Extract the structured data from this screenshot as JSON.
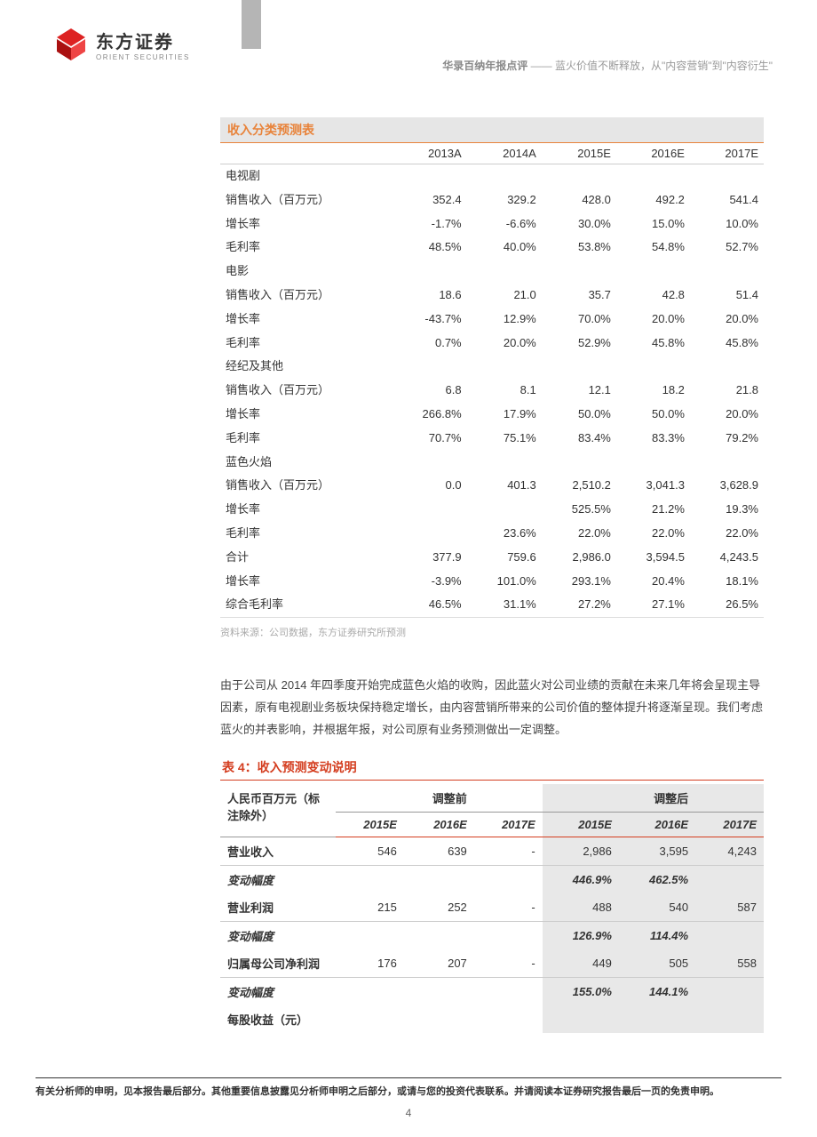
{
  "header": {
    "logo_cn": "东方证券",
    "logo_en": "ORIENT SECURITIES",
    "title_bold": "华录百纳年报点评",
    "title_sep": "——",
    "title_rest": "蓝火价值不断释放，从\"内容营销\"到\"内容衍生\""
  },
  "table1": {
    "title": "收入分类预测表",
    "columns": [
      "",
      "2013A",
      "2014A",
      "2015E",
      "2016E",
      "2017E"
    ],
    "sections": [
      {
        "label": "电视剧",
        "rows": [
          [
            "销售收入（百万元）",
            "352.4",
            "329.2",
            "428.0",
            "492.2",
            "541.4"
          ],
          [
            "增长率",
            "-1.7%",
            "-6.6%",
            "30.0%",
            "15.0%",
            "10.0%"
          ],
          [
            "毛利率",
            "48.5%",
            "40.0%",
            "53.8%",
            "54.8%",
            "52.7%"
          ]
        ]
      },
      {
        "label": "电影",
        "rows": [
          [
            "销售收入（百万元）",
            "18.6",
            "21.0",
            "35.7",
            "42.8",
            "51.4"
          ],
          [
            "增长率",
            "-43.7%",
            "12.9%",
            "70.0%",
            "20.0%",
            "20.0%"
          ],
          [
            "毛利率",
            "0.7%",
            "20.0%",
            "52.9%",
            "45.8%",
            "45.8%"
          ]
        ]
      },
      {
        "label": "经纪及其他",
        "rows": [
          [
            "销售收入（百万元）",
            "6.8",
            "8.1",
            "12.1",
            "18.2",
            "21.8"
          ],
          [
            "增长率",
            "266.8%",
            "17.9%",
            "50.0%",
            "50.0%",
            "20.0%"
          ],
          [
            "毛利率",
            "70.7%",
            "75.1%",
            "83.4%",
            "83.3%",
            "79.2%"
          ]
        ]
      },
      {
        "label": "蓝色火焰",
        "rows": [
          [
            "销售收入（百万元）",
            "0.0",
            "401.3",
            "2,510.2",
            "3,041.3",
            "3,628.9"
          ],
          [
            "增长率",
            "",
            "",
            "525.5%",
            "21.2%",
            "19.3%"
          ],
          [
            "毛利率",
            "",
            "23.6%",
            "22.0%",
            "22.0%",
            "22.0%"
          ]
        ]
      }
    ],
    "totals": [
      [
        "合计",
        "377.9",
        "759.6",
        "2,986.0",
        "3,594.5",
        "4,243.5"
      ],
      [
        "增长率",
        "-3.9%",
        "101.0%",
        "293.1%",
        "20.4%",
        "18.1%"
      ],
      [
        "综合毛利率",
        "46.5%",
        "31.1%",
        "27.2%",
        "27.1%",
        "26.5%"
      ]
    ],
    "source": "资料来源：公司数据，东方证券研究所预测"
  },
  "paragraph": "由于公司从 2014 年四季度开始完成蓝色火焰的收购，因此蓝火对公司业绩的贡献在未来几年将会呈现主导因素，原有电视剧业务板块保持稳定增长，由内容营销所带来的公司价值的整体提升将逐渐呈现。我们考虑蓝火的并表影响，并根据年报，对公司原有业务预测做出一定调整。",
  "table2": {
    "caption": "表 4：收入预测变动说明",
    "unit_label": "人民币百万元（标注除外）",
    "group_before": "调整前",
    "group_after": "调整后",
    "year_cols": [
      "2015E",
      "2016E",
      "2017E",
      "2015E",
      "2016E",
      "2017E"
    ],
    "rows": [
      {
        "label": "营业收入",
        "vals": [
          "546",
          "639",
          "-",
          "2,986",
          "3,595",
          "4,243"
        ],
        "border": true
      },
      {
        "label": "变动幅度",
        "vals": [
          "",
          "",
          "",
          "446.9%",
          "462.5%",
          ""
        ],
        "italic": true,
        "bold_after": true
      },
      {
        "label": "营业利润",
        "vals": [
          "215",
          "252",
          "-",
          "488",
          "540",
          "587"
        ],
        "border": true
      },
      {
        "label": "变动幅度",
        "vals": [
          "",
          "",
          "",
          "126.9%",
          "114.4%",
          ""
        ],
        "italic": true,
        "bold_after": true
      },
      {
        "label": "归属母公司净利润",
        "vals": [
          "176",
          "207",
          "-",
          "449",
          "505",
          "558"
        ],
        "border": true
      },
      {
        "label": "变动幅度",
        "vals": [
          "",
          "",
          "",
          "155.0%",
          "144.1%",
          ""
        ],
        "italic": true,
        "bold_after": true
      },
      {
        "label": "每股收益（元）",
        "vals": [
          "",
          "",
          "",
          "",
          "",
          ""
        ]
      }
    ]
  },
  "footer": "有关分析师的申明，见本报告最后部分。其他重要信息披露见分析师申明之后部分，或请与您的投资代表联系。并请阅读本证券研究报告最后一页的免责申明。",
  "page_num": "4",
  "colors": {
    "orange": "#e8833a",
    "red": "#d43d1f",
    "gray_band": "#e6e6e6",
    "shade": "#e8e8e8"
  }
}
